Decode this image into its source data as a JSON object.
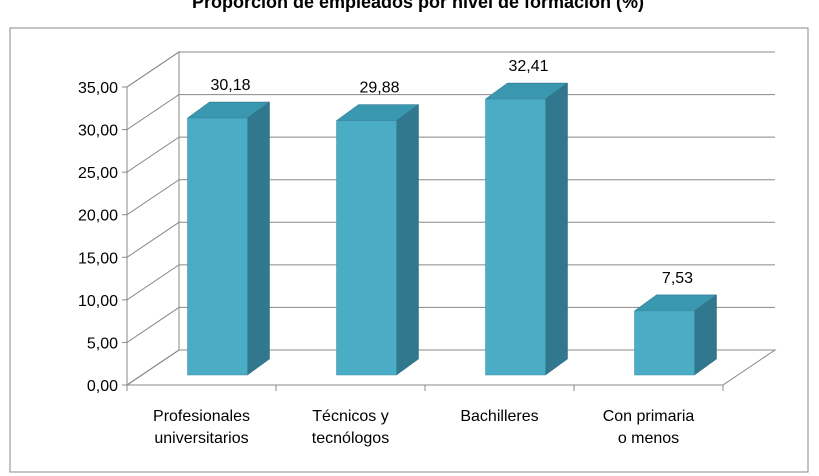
{
  "chart_data": {
    "type": "bar3d",
    "title": "Proporción de empleados por nivel de formación (%)",
    "categories": [
      "Profesionales\nuniversitarios",
      "Técnicos y\ntecnólogos",
      "Bachilleres",
      "Con primaria\no menos"
    ],
    "values": [
      30.18,
      29.88,
      32.41,
      7.53
    ],
    "value_labels": [
      "30,18",
      "29,88",
      "32,41",
      "7,53"
    ],
    "color": "#4bacc6",
    "ylim": [
      0,
      35
    ],
    "yticks": [
      {
        "value": 0,
        "label": "0,00"
      },
      {
        "value": 5,
        "label": "5,00"
      },
      {
        "value": 10,
        "label": "10,00"
      },
      {
        "value": 15,
        "label": "15,00"
      },
      {
        "value": 20,
        "label": "20,00"
      },
      {
        "value": 25,
        "label": "25,00"
      },
      {
        "value": 30,
        "label": "30,00"
      },
      {
        "value": 35,
        "label": "35,00"
      }
    ],
    "grid": true
  }
}
